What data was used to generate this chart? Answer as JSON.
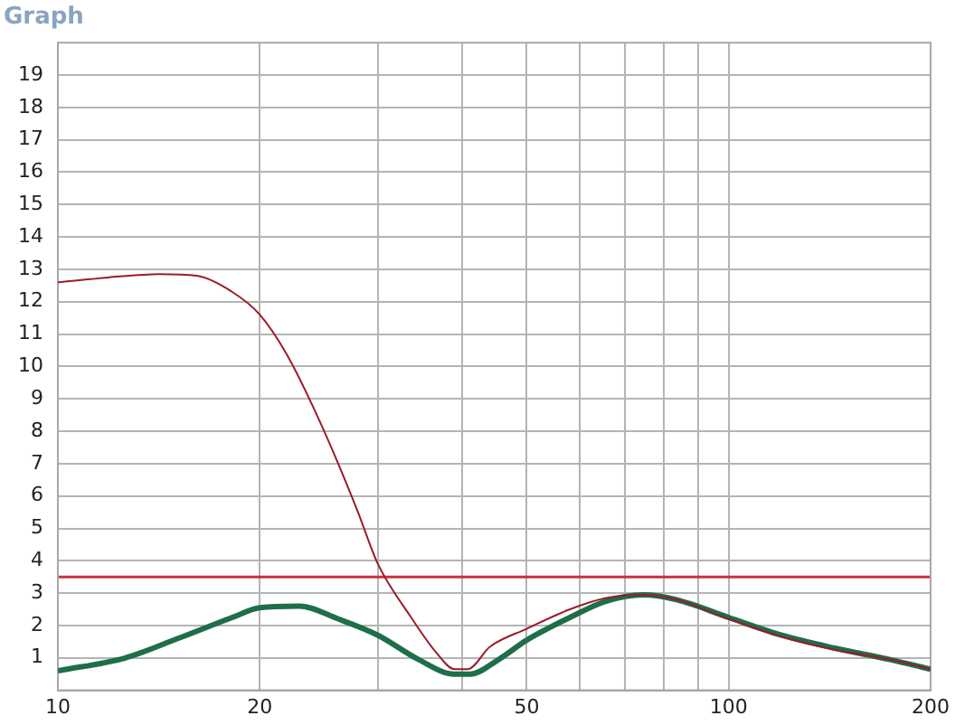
{
  "chart_data": {
    "type": "line",
    "title": "Graph",
    "log": "x",
    "grid": true,
    "legend": false,
    "marker": "none",
    "xlim": [
      10,
      200
    ],
    "xticks": [
      10,
      20,
      {
        "value": 30,
        "label": null
      },
      {
        "value": 40,
        "label": null
      },
      50,
      {
        "value": 60,
        "label": null
      },
      {
        "value": 70,
        "label": null
      },
      {
        "value": 80,
        "label": null
      },
      {
        "value": 90,
        "label": null
      },
      100,
      200
    ],
    "ylim": [
      0,
      20
    ],
    "yticks": [
      1,
      2,
      3,
      4,
      5,
      6,
      7,
      8,
      9,
      10,
      11,
      12,
      13,
      14,
      15,
      16,
      17,
      18,
      19
    ],
    "ref_lines": [
      {
        "axis": "y",
        "value": 3.5,
        "color": "#c8323c"
      }
    ],
    "series": [
      {
        "color": "#9b1c28",
        "x": [
          10,
          11.9,
          14.2,
          16.1,
          18.2,
          20,
          21.9,
          24.7,
          27.9,
          30,
          33.5,
          36.7,
          39,
          40.8,
          44.1,
          50,
          58,
          65.6,
          74.6,
          83.6,
          100,
          120,
          144,
          174,
          200
        ],
        "values": [
          12.6,
          12.75,
          12.85,
          12.8,
          12.3,
          11.6,
          10.4,
          8.2,
          5.6,
          3.9,
          2.3,
          1.15,
          0.65,
          0.65,
          1.35,
          1.9,
          2.5,
          2.85,
          2.95,
          2.8,
          2.2,
          1.65,
          1.25,
          0.95,
          0.65
        ]
      },
      {
        "color": "#1e6e4a",
        "x": [
          10,
          12.6,
          15.1,
          18.2,
          20,
          22.9,
          26.2,
          30,
          34.5,
          39,
          41.2,
          45.4,
          50,
          58,
          65.6,
          74.6,
          83.6,
          100,
          120,
          144,
          174,
          200
        ],
        "values": [
          0.6,
          1.0,
          1.6,
          2.25,
          2.55,
          2.6,
          2.2,
          1.7,
          0.95,
          0.5,
          0.5,
          0.95,
          1.55,
          2.25,
          2.75,
          2.95,
          2.8,
          2.25,
          1.7,
          1.3,
          0.95,
          0.65
        ]
      }
    ]
  }
}
